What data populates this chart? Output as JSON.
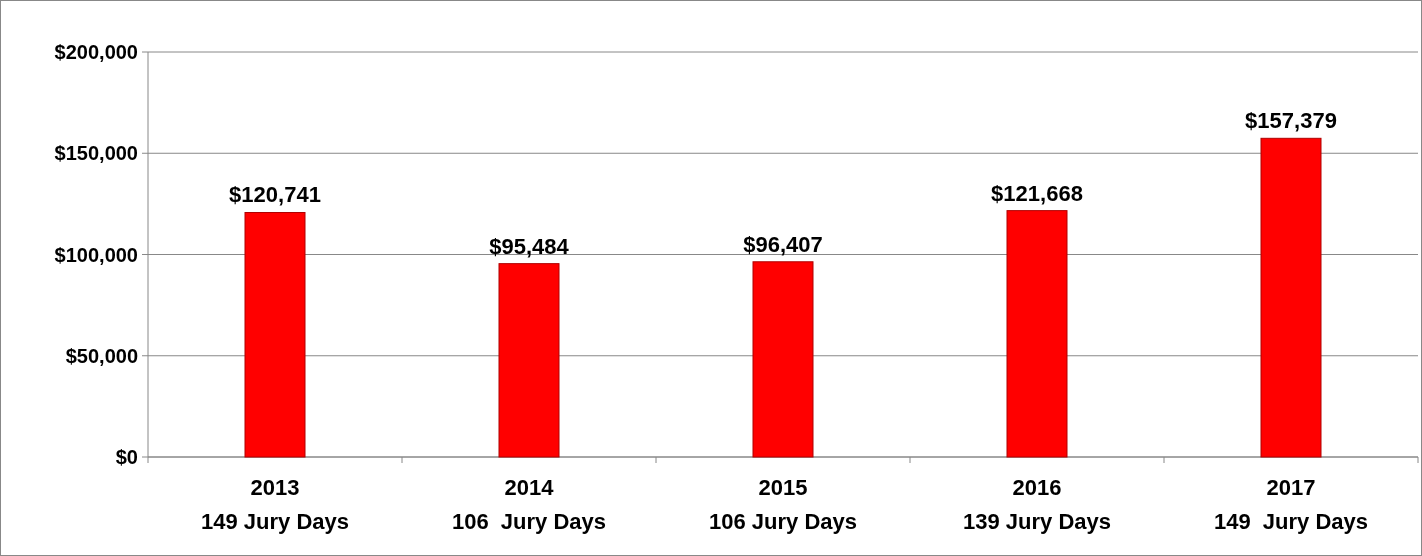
{
  "chart_data": {
    "type": "bar",
    "categories": [
      "2013\n149 Jury Days",
      "2014\n106  Jury Days",
      "2015\n106 Jury Days",
      "2016\n139 Jury Days",
      "2017\n149  Jury Days"
    ],
    "values": [
      120741,
      95484,
      96407,
      121668,
      157379
    ],
    "color": "#ff0000",
    "value_labels": [
      "$120,741",
      "$95,484",
      "$96,407",
      "$121,668",
      "$157,379"
    ],
    "ylim": [
      0,
      200000
    ],
    "yticks": [
      {
        "value": 0,
        "label": "$0"
      },
      {
        "value": 50000,
        "label": "$50,000"
      },
      {
        "value": 100000,
        "label": "$100,000"
      },
      {
        "value": 150000,
        "label": "$150,000"
      },
      {
        "value": 200000,
        "label": "$200,000"
      }
    ],
    "grid": "y"
  }
}
